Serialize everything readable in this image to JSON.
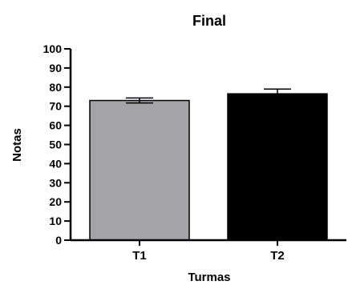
{
  "chart_data": {
    "type": "bar",
    "title": "Final",
    "xlabel": "Turmas",
    "ylabel": "Notas",
    "categories": [
      "T1",
      "T2"
    ],
    "values": [
      73,
      76.5
    ],
    "error": [
      1.3,
      2.5
    ],
    "ylim": [
      0,
      100
    ],
    "yticks": [
      0,
      10,
      20,
      30,
      40,
      50,
      60,
      70,
      80,
      90,
      100
    ],
    "grid": false,
    "bar_colors": [
      "#a3a3a8",
      "#000000"
    ],
    "bar_edge_color": "#000000"
  }
}
